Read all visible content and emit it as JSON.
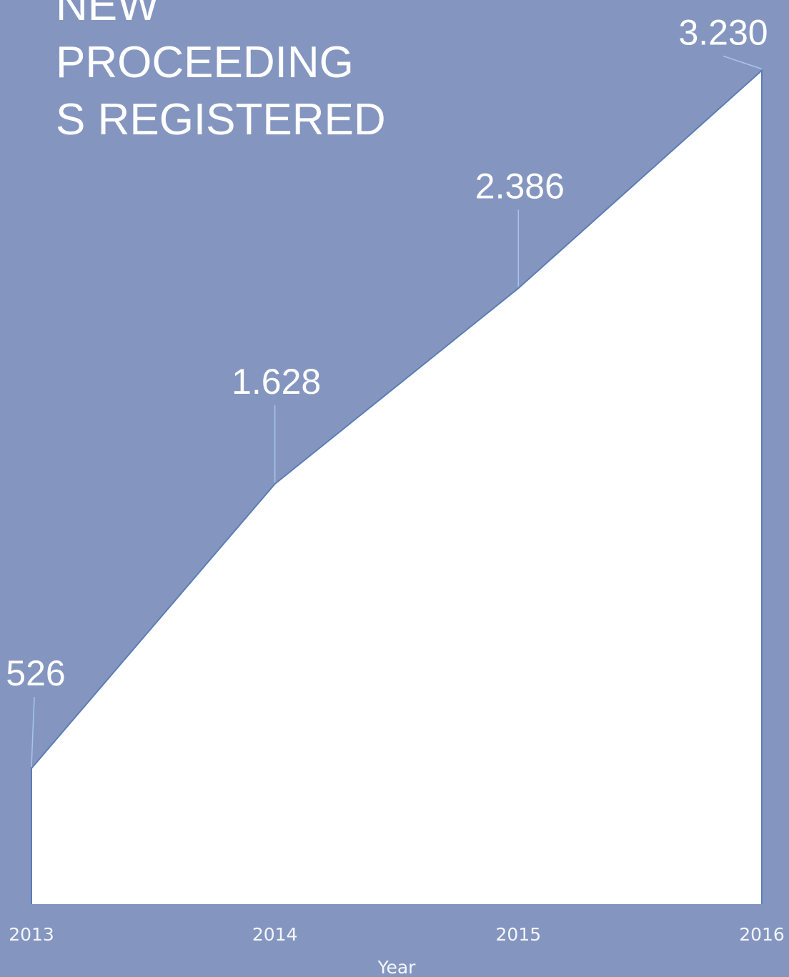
{
  "chart_data": {
    "type": "area",
    "title": [
      "NEW",
      "PROCEEDING",
      "S REGISTERED"
    ],
    "x_label": "Year",
    "categories": [
      "2013",
      "2014",
      "2015",
      "2016"
    ],
    "values": [
      526,
      1628,
      2386,
      3230
    ],
    "value_labels": [
      "526",
      "1.628",
      "2.386",
      "3.230"
    ],
    "color": "#ffffff",
    "ylim": [
      0,
      3500
    ]
  }
}
